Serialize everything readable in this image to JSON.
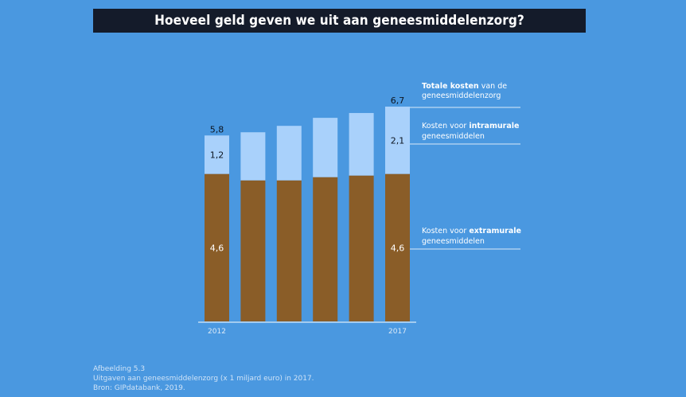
{
  "header": {
    "title": "Hoeveel geld geven we uit aan geneesmiddelenzorg?"
  },
  "chart_data": {
    "type": "bar",
    "stacked": true,
    "categories": [
      "2012",
      "",
      "",
      "",
      "",
      "2017"
    ],
    "series": [
      {
        "name": "Kosten voor extramurale geneesmiddelen",
        "values": [
          4.6,
          4.4,
          4.4,
          4.5,
          4.55,
          4.6
        ],
        "color": "#8a5d28"
      },
      {
        "name": "Kosten voor intramurale geneesmiddelen",
        "values": [
          1.2,
          1.5,
          1.7,
          1.85,
          1.95,
          2.1
        ],
        "color": "#a9d1fb"
      }
    ],
    "totals": [
      5.8,
      5.9,
      6.1,
      6.35,
      6.5,
      6.7
    ],
    "data_labels": {
      "total": {
        "first": "5,8",
        "last": "6,7"
      },
      "intramural": {
        "first": "1,2",
        "last": "2,1"
      },
      "extramural": {
        "first": "4,6",
        "last": "4,6"
      }
    },
    "legend": {
      "totaal": {
        "bold": "Totale kosten",
        "rest": " van de",
        "line2": "geneesmiddelenzorg"
      },
      "intramuraal": {
        "pre": "Kosten voor ",
        "bold": "intramurale",
        "line2": "geneesmiddelen"
      },
      "extramuraal": {
        "pre": "Kosten voor ",
        "bold": "extramurale",
        "line2": "geneesmiddelen"
      }
    },
    "xlabel": "",
    "ylabel": "",
    "ylim": [
      0,
      6.7
    ],
    "grid": false,
    "legend_placement": "right"
  },
  "caption": {
    "line1": "Afbeelding 5.3",
    "line2": "Uitgaven aan geneesmiddelenzorg (x 1 miljard euro) in 2017.",
    "line3": "Bron: GIPdatabank, 2019."
  },
  "colors": {
    "background": "#4a98e0",
    "title_bar": "#141b2a"
  }
}
